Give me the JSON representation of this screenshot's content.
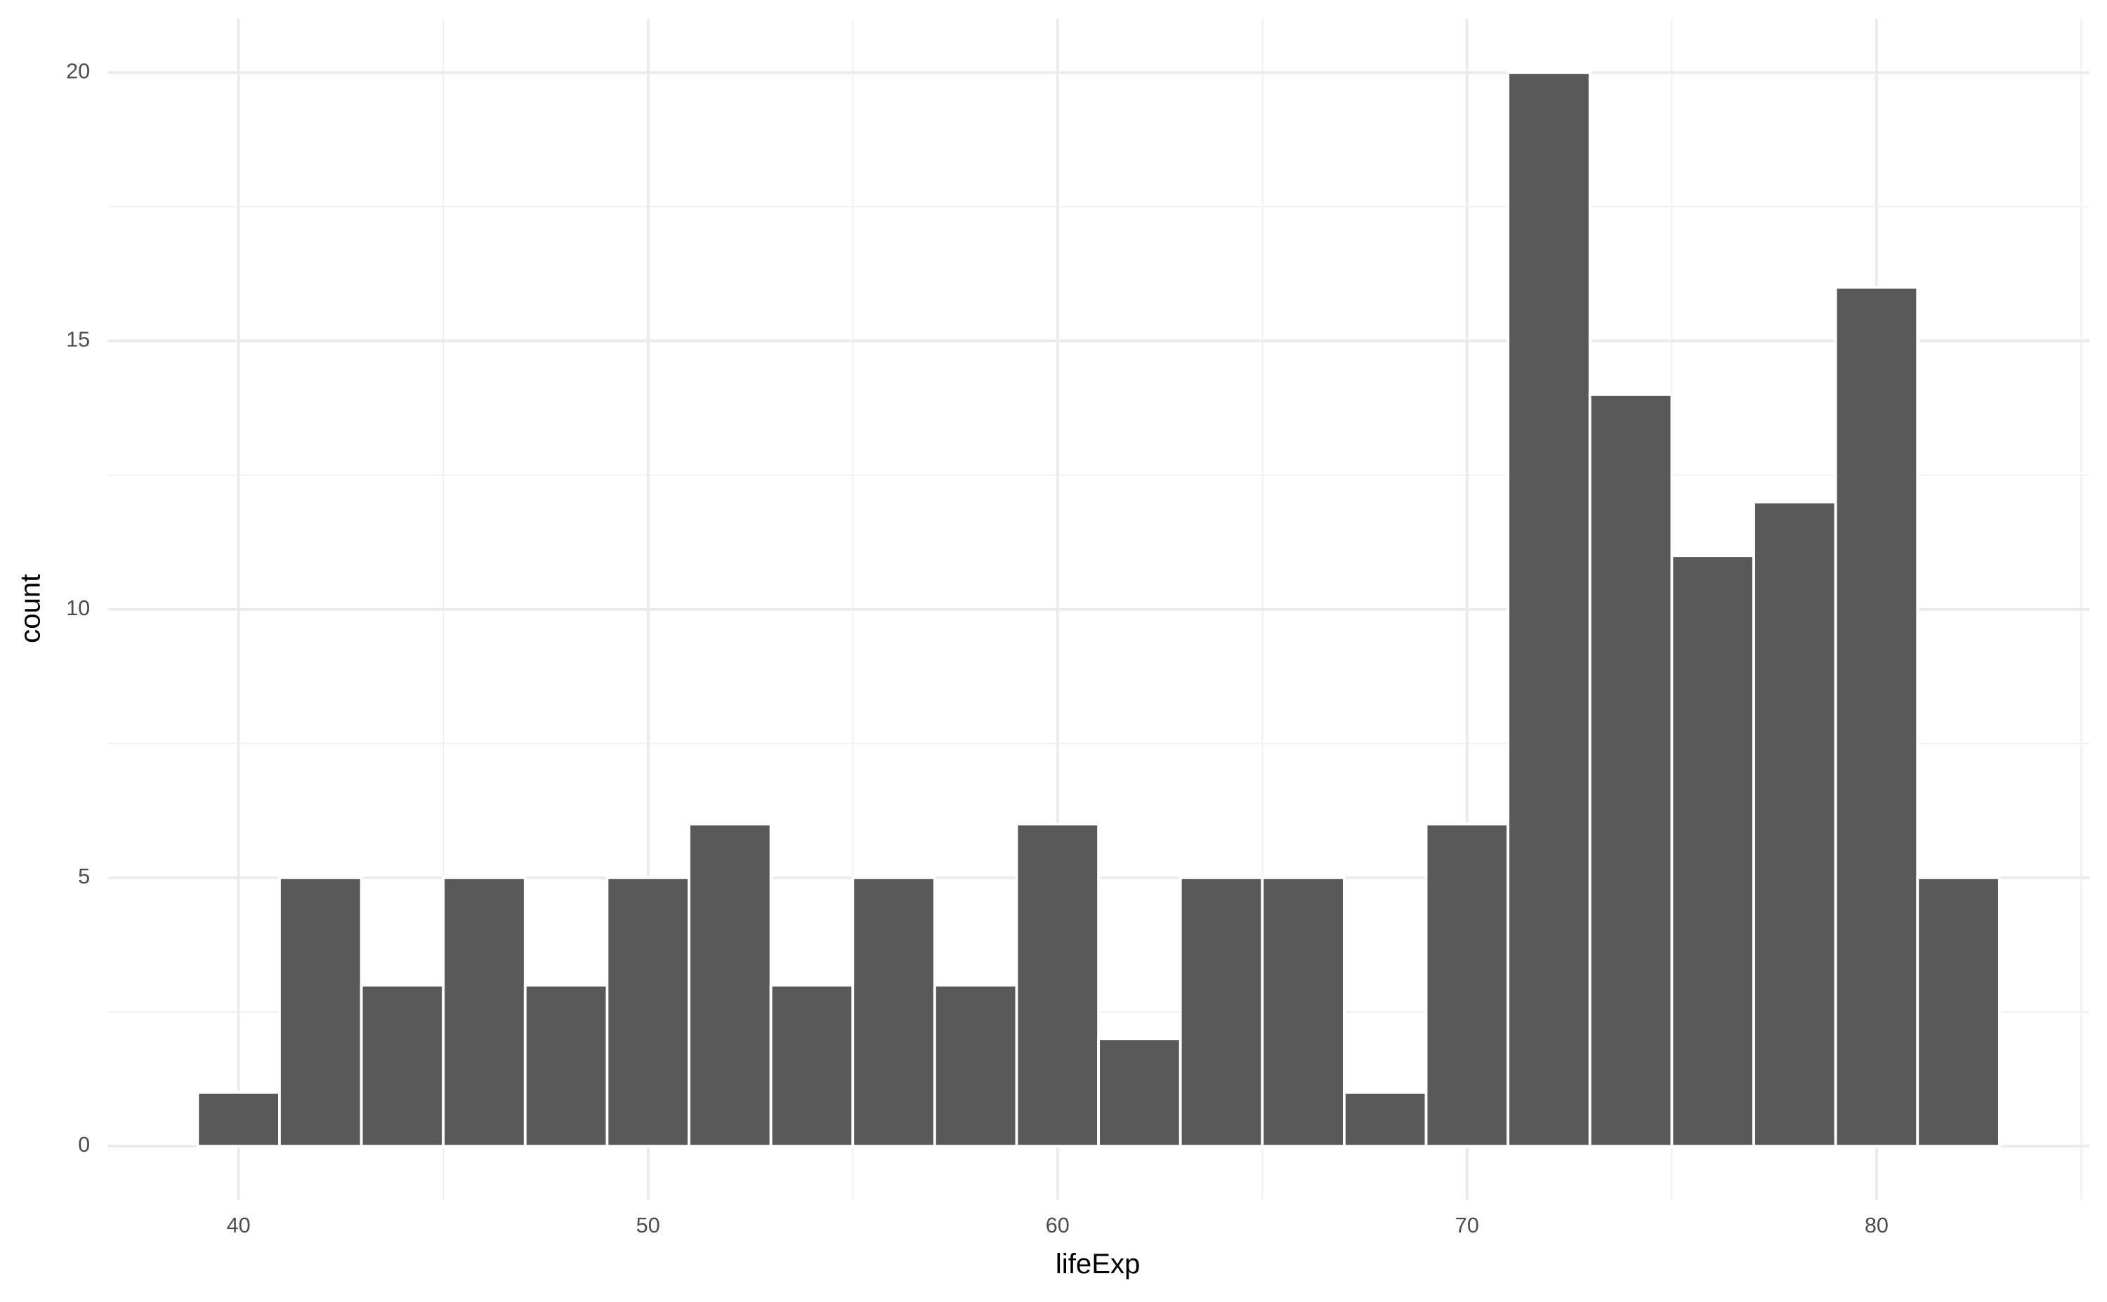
{
  "chart_data": {
    "type": "histogram",
    "x_label": "lifeExp",
    "y_label": "count",
    "bins": [
      39,
      41,
      43,
      45,
      47,
      49,
      51,
      53,
      55,
      57,
      59,
      61,
      63,
      65,
      67,
      69,
      71,
      73,
      75,
      77,
      79,
      81,
      83
    ],
    "values": [
      1,
      5,
      3,
      5,
      3,
      5,
      6,
      3,
      5,
      3,
      6,
      2,
      5,
      5,
      1,
      6,
      20,
      14,
      11,
      12,
      16,
      5
    ],
    "color": "#595959",
    "xlim": [
      36.8,
      85.2
    ],
    "xticks": [
      40,
      50,
      60,
      70,
      80
    ],
    "ylim": [
      -1,
      21
    ],
    "yticks": [
      0,
      5,
      10,
      15,
      20
    ],
    "grid": true
  }
}
